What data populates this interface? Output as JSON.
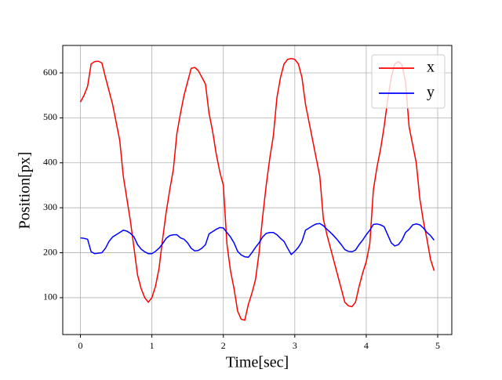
{
  "chart_data": {
    "type": "line",
    "x_label": "Time[sec]",
    "y_label": "Position[px]",
    "x": [
      0,
      0.05,
      0.1,
      0.15,
      0.2,
      0.25,
      0.3,
      0.35,
      0.4,
      0.45,
      0.5,
      0.55,
      0.6,
      0.65,
      0.7,
      0.75,
      0.8,
      0.85,
      0.9,
      0.95,
      1.0,
      1.05,
      1.1,
      1.15,
      1.2,
      1.25,
      1.3,
      1.35,
      1.4,
      1.45,
      1.5,
      1.55,
      1.6,
      1.65,
      1.7,
      1.75,
      1.8,
      1.85,
      1.9,
      1.95,
      2.0,
      2.05,
      2.1,
      2.15,
      2.2,
      2.25,
      2.3,
      2.35,
      2.4,
      2.45,
      2.5,
      2.55,
      2.6,
      2.65,
      2.7,
      2.75,
      2.8,
      2.85,
      2.9,
      2.95,
      3.0,
      3.05,
      3.1,
      3.15,
      3.2,
      3.25,
      3.3,
      3.35,
      3.4,
      3.45,
      3.5,
      3.55,
      3.6,
      3.65,
      3.7,
      3.75,
      3.8,
      3.85,
      3.9,
      3.95,
      4.0,
      4.05,
      4.1,
      4.15,
      4.2,
      4.25,
      4.3,
      4.35,
      4.4,
      4.45,
      4.5,
      4.55,
      4.6,
      4.65,
      4.7,
      4.75,
      4.8,
      4.85,
      4.9,
      4.95
    ],
    "series": [
      {
        "name": "x",
        "color": "#ff0000",
        "values": [
          535,
          550,
          570,
          620,
          625,
          626,
          622,
          590,
          560,
          530,
          490,
          450,
          370,
          320,
          270,
          210,
          150,
          120,
          100,
          90,
          100,
          125,
          165,
          230,
          290,
          340,
          385,
          465,
          510,
          550,
          580,
          610,
          612,
          605,
          590,
          575,
          510,
          470,
          420,
          380,
          350,
          220,
          160,
          120,
          70,
          52,
          50,
          85,
          110,
          140,
          200,
          280,
          350,
          410,
          460,
          545,
          590,
          620,
          630,
          632,
          630,
          620,
          590,
          530,
          490,
          450,
          410,
          370,
          275,
          240,
          210,
          180,
          150,
          120,
          90,
          82,
          80,
          90,
          125,
          155,
          180,
          220,
          340,
          390,
          430,
          480,
          540,
          590,
          620,
          625,
          618,
          580,
          480,
          440,
          400,
          320,
          270,
          230,
          185,
          160
        ]
      },
      {
        "name": "y",
        "color": "#0000ff",
        "values": [
          233,
          232,
          230,
          202,
          198,
          199,
          200,
          210,
          225,
          235,
          240,
          245,
          250,
          248,
          243,
          235,
          218,
          208,
          202,
          198,
          198,
          203,
          210,
          220,
          232,
          238,
          240,
          240,
          233,
          230,
          222,
          210,
          204,
          205,
          210,
          218,
          242,
          247,
          252,
          256,
          255,
          245,
          235,
          222,
          203,
          195,
          191,
          190,
          200,
          212,
          222,
          235,
          243,
          245,
          245,
          240,
          232,
          225,
          210,
          196,
          203,
          212,
          225,
          250,
          255,
          260,
          264,
          265,
          260,
          252,
          245,
          237,
          228,
          218,
          207,
          203,
          202,
          206,
          218,
          228,
          240,
          250,
          263,
          264,
          262,
          258,
          240,
          222,
          215,
          218,
          228,
          245,
          252,
          262,
          264,
          262,
          255,
          245,
          238,
          228
        ]
      }
    ],
    "xlim": [
      -0.2475,
      5.1975
    ],
    "ylim": [
      18,
      661
    ],
    "xticks": [
      0,
      1,
      2,
      3,
      4,
      5
    ],
    "yticks": [
      100,
      200,
      300,
      400,
      500,
      600
    ],
    "grid": true,
    "legend": "upper right"
  }
}
